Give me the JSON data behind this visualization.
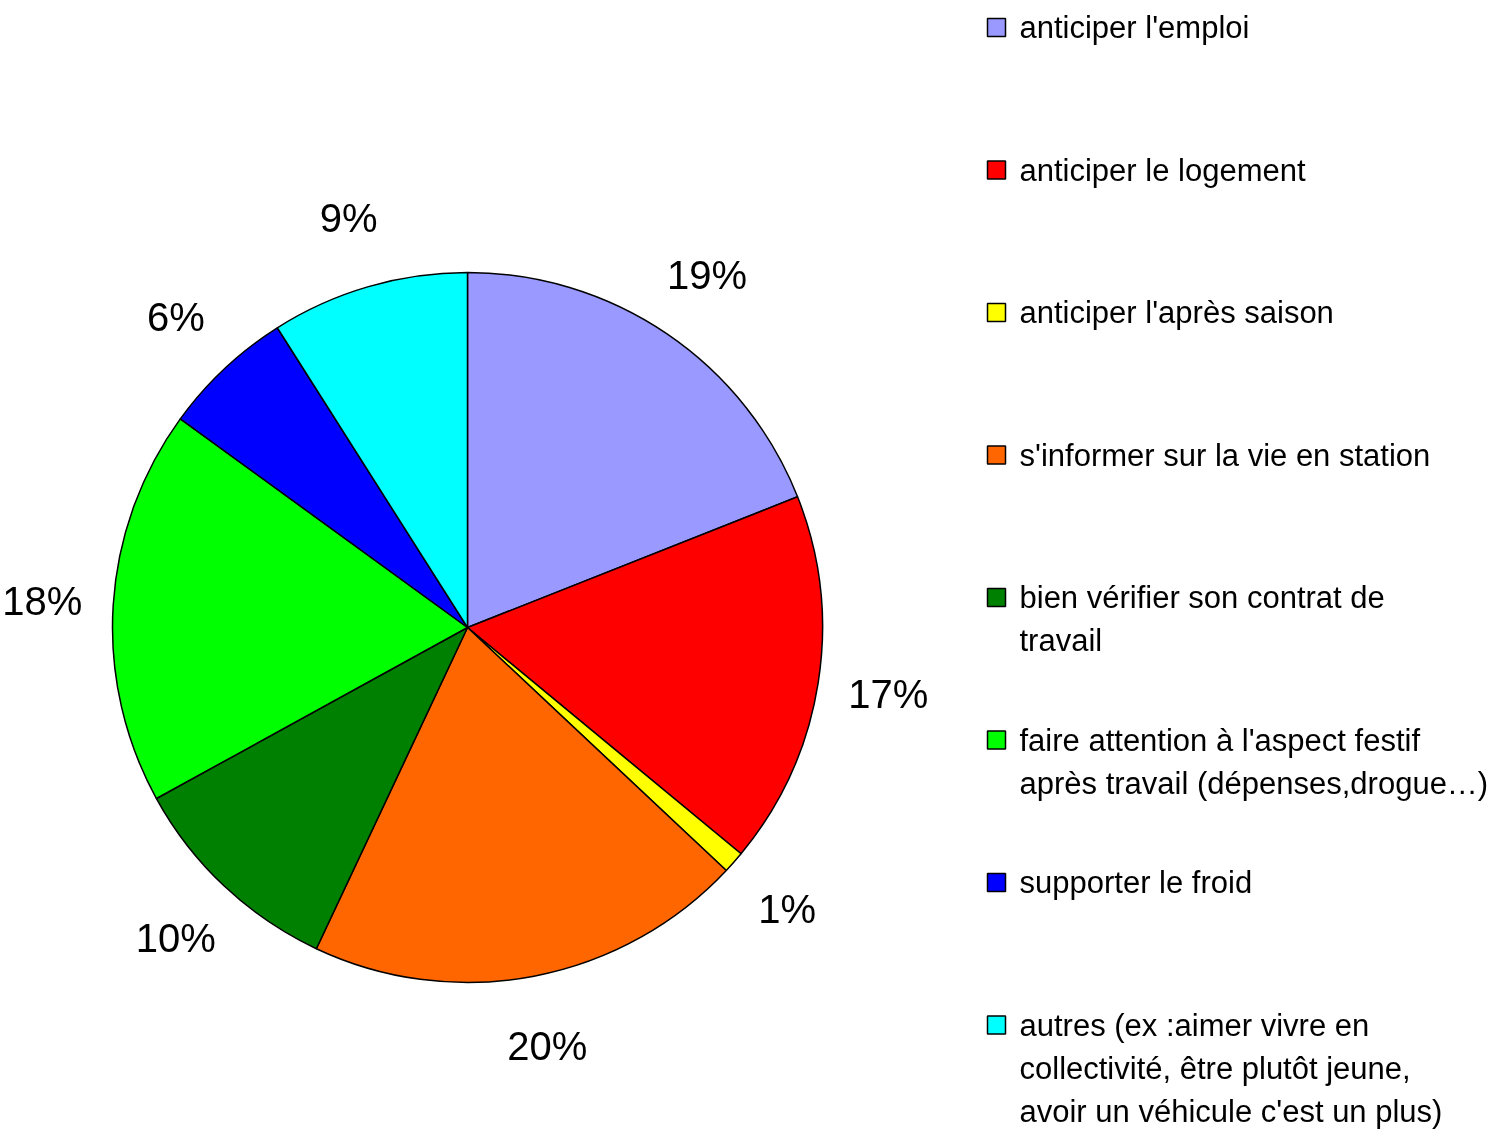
{
  "chart_data": {
    "type": "pie",
    "categories": [
      "anticiper l'emploi",
      "anticiper le logement",
      "anticiper l'après saison",
      "s'informer sur la vie en station",
      "bien vérifier son contrat de travail",
      "faire attention à l'aspect festif après travail (dépenses,drogue…)",
      "supporter le froid",
      "autres (ex :aimer vivre en collectivité, être plutôt jeune, avoir un véhicule c'est un plus)"
    ],
    "values": [
      19,
      17,
      1,
      20,
      10,
      18,
      6,
      9
    ],
    "value_labels": [
      "19%",
      "17%",
      "1%",
      "20%",
      "10%",
      "18%",
      "6%",
      "9%"
    ],
    "colors": [
      "#9999ff",
      "#ff0000",
      "#ffff00",
      "#ff6600",
      "#008000",
      "#00ff00",
      "#0000ff",
      "#00ffff"
    ],
    "legend": "right"
  }
}
